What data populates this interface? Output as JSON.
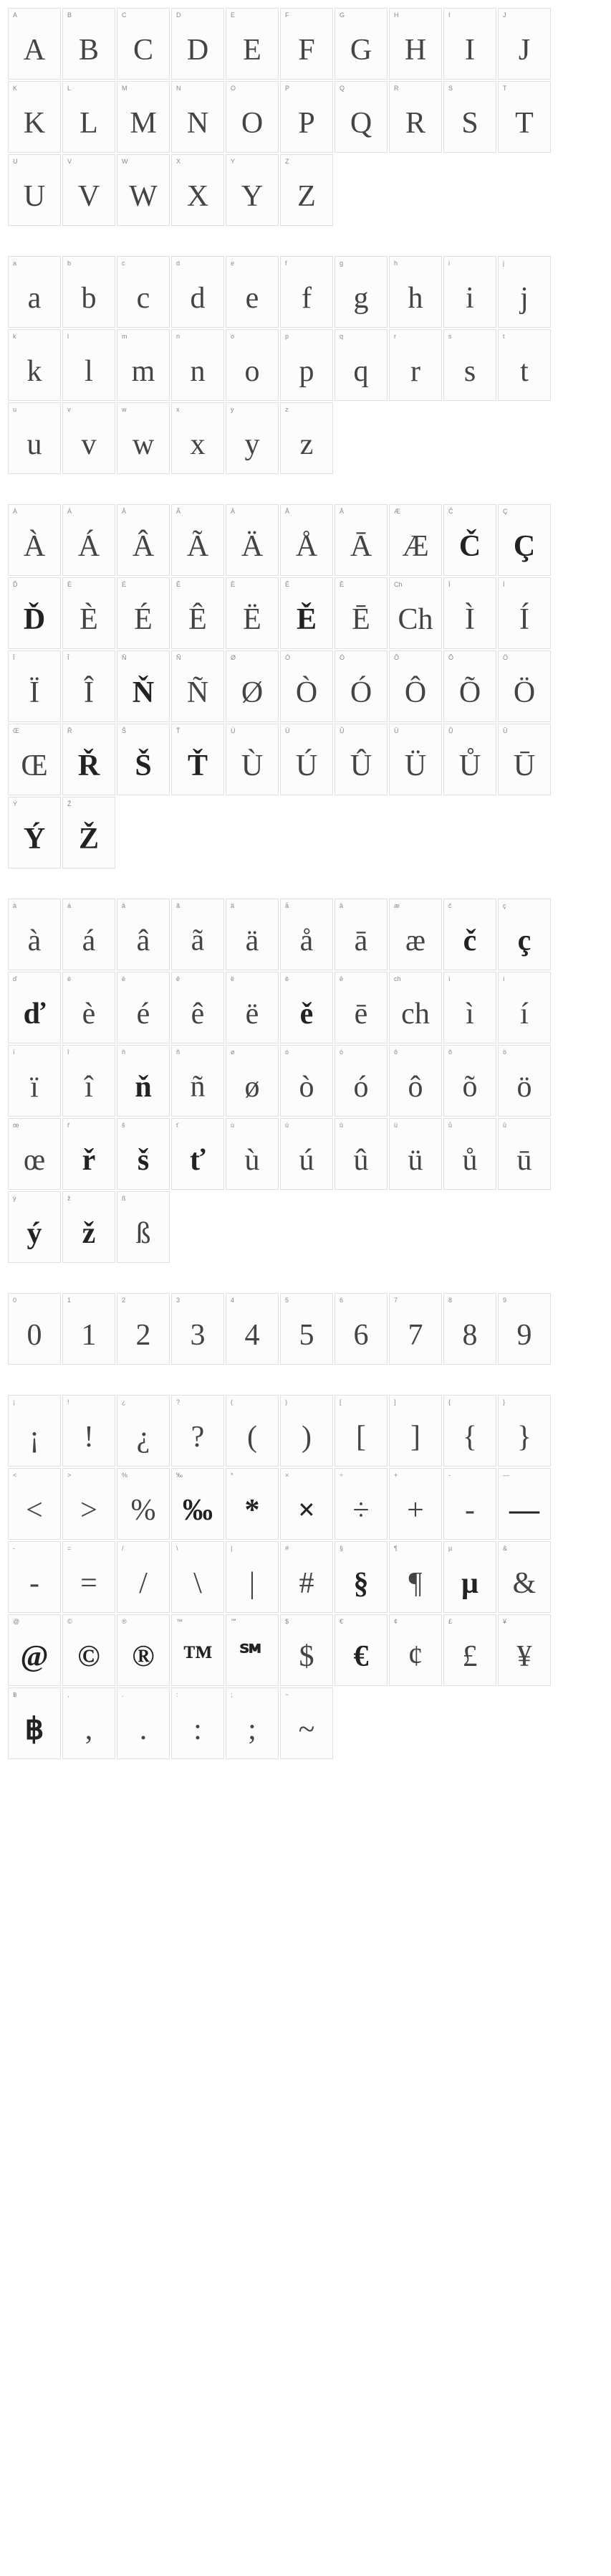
{
  "cell_style": {
    "width": 74,
    "height": 100,
    "border_color": "#e0e0e0",
    "background": "#fcfcfc",
    "label_fontsize": 9,
    "label_color": "#888",
    "glyph_fontsize": 42,
    "glyph_color": "#444",
    "glyph_bold_color": "#222"
  },
  "sections": [
    {
      "name": "uppercase",
      "glyphs": [
        {
          "label": "A",
          "char": "A"
        },
        {
          "label": "B",
          "char": "B"
        },
        {
          "label": "C",
          "char": "C"
        },
        {
          "label": "D",
          "char": "D"
        },
        {
          "label": "E",
          "char": "E"
        },
        {
          "label": "F",
          "char": "F"
        },
        {
          "label": "G",
          "char": "G"
        },
        {
          "label": "H",
          "char": "H"
        },
        {
          "label": "I",
          "char": "I"
        },
        {
          "label": "J",
          "char": "J"
        },
        {
          "label": "K",
          "char": "K"
        },
        {
          "label": "L",
          "char": "L"
        },
        {
          "label": "M",
          "char": "M"
        },
        {
          "label": "N",
          "char": "N"
        },
        {
          "label": "O",
          "char": "O"
        },
        {
          "label": "P",
          "char": "P"
        },
        {
          "label": "Q",
          "char": "Q"
        },
        {
          "label": "R",
          "char": "R"
        },
        {
          "label": "S",
          "char": "S"
        },
        {
          "label": "T",
          "char": "T"
        },
        {
          "label": "U",
          "char": "U"
        },
        {
          "label": "V",
          "char": "V"
        },
        {
          "label": "W",
          "char": "W"
        },
        {
          "label": "X",
          "char": "X"
        },
        {
          "label": "Y",
          "char": "Y"
        },
        {
          "label": "Z",
          "char": "Z"
        }
      ]
    },
    {
      "name": "lowercase",
      "glyphs": [
        {
          "label": "a",
          "char": "a"
        },
        {
          "label": "b",
          "char": "b"
        },
        {
          "label": "c",
          "char": "c"
        },
        {
          "label": "d",
          "char": "d"
        },
        {
          "label": "e",
          "char": "e"
        },
        {
          "label": "f",
          "char": "f"
        },
        {
          "label": "g",
          "char": "g"
        },
        {
          "label": "h",
          "char": "h"
        },
        {
          "label": "i",
          "char": "i"
        },
        {
          "label": "j",
          "char": "j"
        },
        {
          "label": "k",
          "char": "k"
        },
        {
          "label": "l",
          "char": "l"
        },
        {
          "label": "m",
          "char": "m"
        },
        {
          "label": "n",
          "char": "n"
        },
        {
          "label": "o",
          "char": "o"
        },
        {
          "label": "p",
          "char": "p"
        },
        {
          "label": "q",
          "char": "q"
        },
        {
          "label": "r",
          "char": "r"
        },
        {
          "label": "s",
          "char": "s"
        },
        {
          "label": "t",
          "char": "t"
        },
        {
          "label": "u",
          "char": "u"
        },
        {
          "label": "v",
          "char": "v"
        },
        {
          "label": "w",
          "char": "w"
        },
        {
          "label": "x",
          "char": "x"
        },
        {
          "label": "y",
          "char": "y"
        },
        {
          "label": "z",
          "char": "z"
        }
      ]
    },
    {
      "name": "uppercase-accented",
      "glyphs": [
        {
          "label": "À",
          "char": "À"
        },
        {
          "label": "Á",
          "char": "Á"
        },
        {
          "label": "Â",
          "char": "Â"
        },
        {
          "label": "Ã",
          "char": "Ã"
        },
        {
          "label": "Ä",
          "char": "Ä"
        },
        {
          "label": "Å",
          "char": "Å"
        },
        {
          "label": "Ā",
          "char": "Ā"
        },
        {
          "label": "Æ",
          "char": "Æ"
        },
        {
          "label": "Č",
          "char": "Č",
          "bold": true
        },
        {
          "label": "Ç",
          "char": "Ç",
          "bold": true
        },
        {
          "label": "Ď",
          "char": "Ď",
          "bold": true
        },
        {
          "label": "È",
          "char": "È"
        },
        {
          "label": "É",
          "char": "É"
        },
        {
          "label": "Ê",
          "char": "Ê"
        },
        {
          "label": "Ë",
          "char": "Ë"
        },
        {
          "label": "Ě",
          "char": "Ě",
          "bold": true
        },
        {
          "label": "Ē",
          "char": "Ē"
        },
        {
          "label": "Ch",
          "char": "Ch"
        },
        {
          "label": "Ì",
          "char": "Ì"
        },
        {
          "label": "Í",
          "char": "Í"
        },
        {
          "label": "Ï",
          "char": "Ï"
        },
        {
          "label": "Î",
          "char": "Î"
        },
        {
          "label": "Ň",
          "char": "Ň",
          "bold": true
        },
        {
          "label": "Ñ",
          "char": "Ñ"
        },
        {
          "label": "Ø",
          "char": "Ø"
        },
        {
          "label": "Ò",
          "char": "Ò"
        },
        {
          "label": "Ó",
          "char": "Ó"
        },
        {
          "label": "Ô",
          "char": "Ô"
        },
        {
          "label": "Õ",
          "char": "Õ"
        },
        {
          "label": "Ö",
          "char": "Ö"
        },
        {
          "label": "Œ",
          "char": "Œ"
        },
        {
          "label": "Ř",
          "char": "Ř",
          "bold": true
        },
        {
          "label": "Š",
          "char": "Š",
          "bold": true
        },
        {
          "label": "Ť",
          "char": "Ť",
          "bold": true
        },
        {
          "label": "Ù",
          "char": "Ù"
        },
        {
          "label": "Ú",
          "char": "Ú"
        },
        {
          "label": "Û",
          "char": "Û"
        },
        {
          "label": "Ü",
          "char": "Ü"
        },
        {
          "label": "Ů",
          "char": "Ů"
        },
        {
          "label": "Ū",
          "char": "Ū"
        },
        {
          "label": "Ý",
          "char": "Ý",
          "bold": true
        },
        {
          "label": "Ž",
          "char": "Ž",
          "bold": true
        }
      ]
    },
    {
      "name": "lowercase-accented",
      "glyphs": [
        {
          "label": "à",
          "char": "à"
        },
        {
          "label": "á",
          "char": "á"
        },
        {
          "label": "â",
          "char": "â"
        },
        {
          "label": "ã",
          "char": "ã"
        },
        {
          "label": "ä",
          "char": "ä"
        },
        {
          "label": "å",
          "char": "å"
        },
        {
          "label": "ā",
          "char": "ā"
        },
        {
          "label": "æ",
          "char": "æ"
        },
        {
          "label": "č",
          "char": "č",
          "bold": true
        },
        {
          "label": "ç",
          "char": "ç",
          "bold": true
        },
        {
          "label": "ď",
          "char": "ď",
          "bold": true
        },
        {
          "label": "è",
          "char": "è"
        },
        {
          "label": "é",
          "char": "é"
        },
        {
          "label": "ê",
          "char": "ê"
        },
        {
          "label": "ë",
          "char": "ë"
        },
        {
          "label": "ě",
          "char": "ě",
          "bold": true
        },
        {
          "label": "ē",
          "char": "ē"
        },
        {
          "label": "ch",
          "char": "ch"
        },
        {
          "label": "ì",
          "char": "ì"
        },
        {
          "label": "í",
          "char": "í"
        },
        {
          "label": "ï",
          "char": "ï"
        },
        {
          "label": "î",
          "char": "î"
        },
        {
          "label": "ň",
          "char": "ň",
          "bold": true
        },
        {
          "label": "ñ",
          "char": "ñ"
        },
        {
          "label": "ø",
          "char": "ø"
        },
        {
          "label": "ò",
          "char": "ò"
        },
        {
          "label": "ó",
          "char": "ó"
        },
        {
          "label": "ô",
          "char": "ô"
        },
        {
          "label": "õ",
          "char": "õ"
        },
        {
          "label": "ö",
          "char": "ö"
        },
        {
          "label": "œ",
          "char": "œ"
        },
        {
          "label": "ř",
          "char": "ř",
          "bold": true
        },
        {
          "label": "š",
          "char": "š",
          "bold": true
        },
        {
          "label": "ť",
          "char": "ť",
          "bold": true
        },
        {
          "label": "ù",
          "char": "ù"
        },
        {
          "label": "ú",
          "char": "ú"
        },
        {
          "label": "û",
          "char": "û"
        },
        {
          "label": "ü",
          "char": "ü"
        },
        {
          "label": "ů",
          "char": "ů"
        },
        {
          "label": "ū",
          "char": "ū"
        },
        {
          "label": "ý",
          "char": "ý",
          "bold": true
        },
        {
          "label": "ž",
          "char": "ž",
          "bold": true
        },
        {
          "label": "ß",
          "char": "ß"
        }
      ]
    },
    {
      "name": "digits",
      "glyphs": [
        {
          "label": "0",
          "char": "0"
        },
        {
          "label": "1",
          "char": "1"
        },
        {
          "label": "2",
          "char": "2"
        },
        {
          "label": "3",
          "char": "3"
        },
        {
          "label": "4",
          "char": "4"
        },
        {
          "label": "5",
          "char": "5"
        },
        {
          "label": "6",
          "char": "6"
        },
        {
          "label": "7",
          "char": "7"
        },
        {
          "label": "8",
          "char": "8"
        },
        {
          "label": "9",
          "char": "9"
        }
      ]
    },
    {
      "name": "punctuation-symbols",
      "glyphs": [
        {
          "label": "¡",
          "char": "¡"
        },
        {
          "label": "!",
          "char": "!"
        },
        {
          "label": "¿",
          "char": "¿"
        },
        {
          "label": "?",
          "char": "?"
        },
        {
          "label": "(",
          "char": "("
        },
        {
          "label": ")",
          "char": ")"
        },
        {
          "label": "[",
          "char": "["
        },
        {
          "label": "]",
          "char": "]"
        },
        {
          "label": "{",
          "char": "{"
        },
        {
          "label": "}",
          "char": "}"
        },
        {
          "label": "<",
          "char": "<"
        },
        {
          "label": ">",
          "char": ">"
        },
        {
          "label": "%",
          "char": "%"
        },
        {
          "label": "‰",
          "char": "‰",
          "bold": true
        },
        {
          "label": "*",
          "char": "*",
          "bold": true
        },
        {
          "label": "×",
          "char": "×",
          "bold": true
        },
        {
          "label": "÷",
          "char": "÷"
        },
        {
          "label": "+",
          "char": "+"
        },
        {
          "label": "-",
          "char": "-"
        },
        {
          "label": "—",
          "char": "—",
          "bold": true
        },
        {
          "label": "-",
          "char": "-"
        },
        {
          "label": "=",
          "char": "="
        },
        {
          "label": "/",
          "char": "/"
        },
        {
          "label": "\\",
          "char": "\\"
        },
        {
          "label": "|",
          "char": "|"
        },
        {
          "label": "#",
          "char": "#"
        },
        {
          "label": "§",
          "char": "§",
          "bold": true
        },
        {
          "label": "¶",
          "char": "¶"
        },
        {
          "label": "µ",
          "char": "µ",
          "bold": true
        },
        {
          "label": "&",
          "char": "&"
        },
        {
          "label": "@",
          "char": "@",
          "bold": true
        },
        {
          "label": "©",
          "char": "©",
          "bold": true
        },
        {
          "label": "®",
          "char": "®",
          "bold": true
        },
        {
          "label": "™",
          "char": "™",
          "bold": true
        },
        {
          "label": "℠",
          "char": "℠",
          "bold": true
        },
        {
          "label": "$",
          "char": "$"
        },
        {
          "label": "€",
          "char": "€",
          "bold": true
        },
        {
          "label": "¢",
          "char": "¢"
        },
        {
          "label": "£",
          "char": "£"
        },
        {
          "label": "¥",
          "char": "¥"
        },
        {
          "label": "฿",
          "char": "฿",
          "bold": true
        },
        {
          "label": ",",
          "char": ","
        },
        {
          "label": ".",
          "char": "."
        },
        {
          "label": ":",
          "char": ":"
        },
        {
          "label": ";",
          "char": ";"
        },
        {
          "label": "~",
          "char": "~"
        }
      ]
    }
  ]
}
